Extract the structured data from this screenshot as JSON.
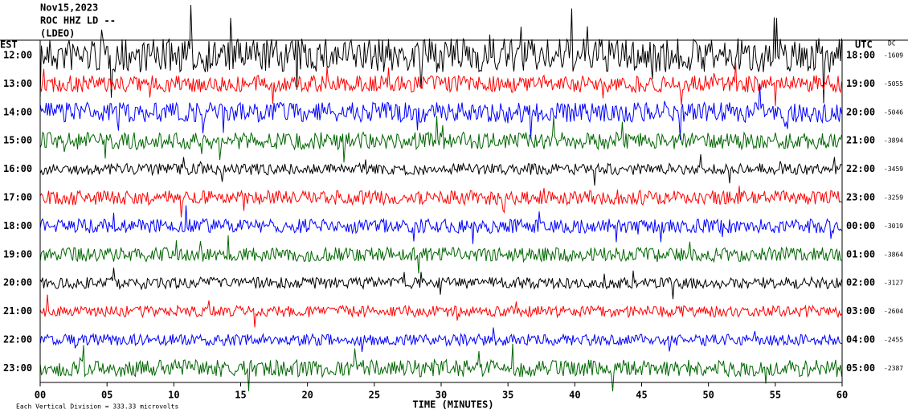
{
  "chart_data": {
    "type": "helicorder",
    "header": [
      "Nov15,2023",
      "ROC HHZ LD --",
      "(LDEO)"
    ],
    "left_label": "EST",
    "right_label": "UTC",
    "dc_label": "DC",
    "xlabel": "TIME (MINUTES)",
    "footer": "Each Vertical Division =  333.33 microvolts",
    "xlim": [
      0,
      60
    ],
    "xticks": [
      {
        "value": 0,
        "label": "00"
      },
      {
        "value": 5,
        "label": "05"
      },
      10,
      15,
      20,
      25,
      30,
      35,
      40,
      45,
      50,
      55,
      60
    ],
    "rows": [
      {
        "est": "12:00",
        "utc": "18:00",
        "dc": "-1609",
        "color": "#000000",
        "amplitude": 1.2
      },
      {
        "est": "13:00",
        "utc": "19:00",
        "dc": "-5055",
        "color": "#ff0000",
        "amplitude": 0.6
      },
      {
        "est": "14:00",
        "utc": "20:00",
        "dc": "-5046",
        "color": "#0000ff",
        "amplitude": 0.7
      },
      {
        "est": "15:00",
        "utc": "21:00",
        "dc": "-3894",
        "color": "#006600",
        "amplitude": 0.6
      },
      {
        "est": "16:00",
        "utc": "22:00",
        "dc": "-3459",
        "color": "#000000",
        "amplitude": 0.4
      },
      {
        "est": "17:00",
        "utc": "23:00",
        "dc": "-3259",
        "color": "#ff0000",
        "amplitude": 0.5
      },
      {
        "est": "18:00",
        "utc": "00:00",
        "dc": "-3019",
        "color": "#0000ff",
        "amplitude": 0.5
      },
      {
        "est": "19:00",
        "utc": "01:00",
        "dc": "-3864",
        "color": "#006600",
        "amplitude": 0.5
      },
      {
        "est": "20:00",
        "utc": "02:00",
        "dc": "-3127",
        "color": "#000000",
        "amplitude": 0.4
      },
      {
        "est": "21:00",
        "utc": "03:00",
        "dc": "-2604",
        "color": "#ff0000",
        "amplitude": 0.4
      },
      {
        "est": "22:00",
        "utc": "04:00",
        "dc": "-2455",
        "color": "#0000ff",
        "amplitude": 0.4
      },
      {
        "est": "23:00",
        "utc": "05:00",
        "dc": "-2387",
        "color": "#006600",
        "amplitude": 0.6
      }
    ]
  }
}
